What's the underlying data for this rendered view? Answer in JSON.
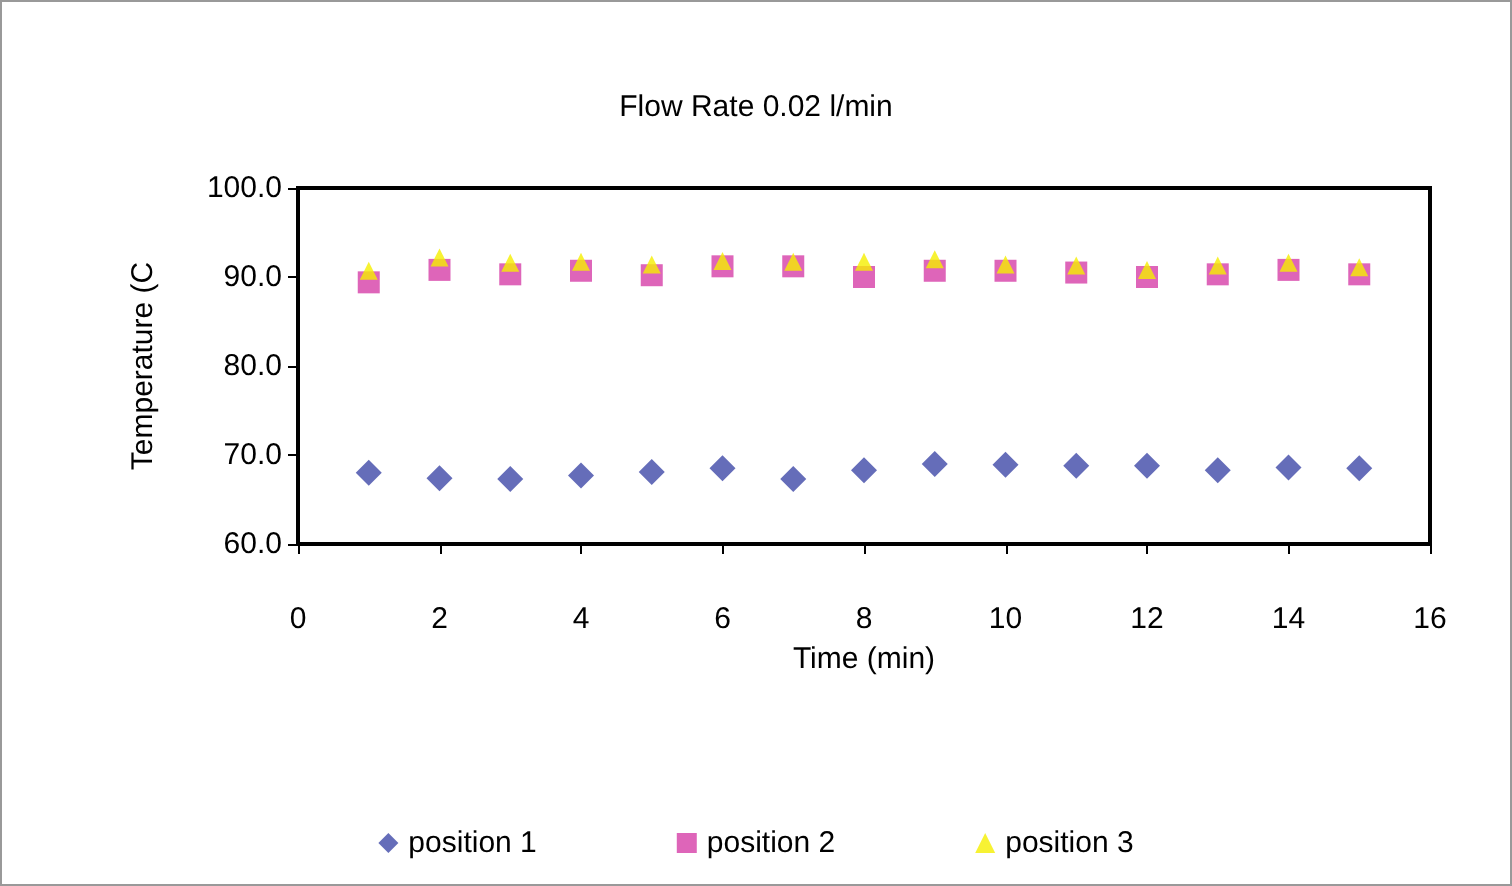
{
  "chart_data": {
    "type": "scatter",
    "title": "Flow Rate 0.02 l/min",
    "xlabel": "Time (min)",
    "ylabel": "Temperature (C",
    "x": [
      1,
      2,
      3,
      4,
      5,
      6,
      7,
      8,
      9,
      10,
      11,
      12,
      13,
      14,
      15
    ],
    "series": [
      {
        "name": "position 1",
        "color": "#3f48a8",
        "marker": "diamond",
        "values": [
          68.0,
          67.4,
          67.3,
          67.7,
          68.1,
          68.5,
          67.3,
          68.3,
          69.0,
          68.9,
          68.8,
          68.8,
          68.3,
          68.6,
          68.5
        ]
      },
      {
        "name": "position 2",
        "color": "#d63fa8",
        "marker": "square",
        "values": [
          89.4,
          90.8,
          90.3,
          90.7,
          90.2,
          91.2,
          91.2,
          90.0,
          90.7,
          90.7,
          90.5,
          90.0,
          90.3,
          90.8,
          90.3
        ]
      },
      {
        "name": "position 3",
        "color": "#f5ef00",
        "marker": "triangle",
        "values": [
          90.7,
          92.2,
          91.6,
          91.7,
          91.4,
          91.8,
          91.7,
          91.7,
          92.0,
          91.4,
          91.3,
          90.8,
          91.3,
          91.6,
          91.1
        ]
      }
    ],
    "xlim": [
      0,
      16
    ],
    "xticks": [
      0,
      2,
      4,
      6,
      8,
      10,
      12,
      14,
      16
    ],
    "ylim": [
      60,
      100
    ],
    "yticks": [
      {
        "value": 60,
        "label": "60.0"
      },
      {
        "value": 70,
        "label": "70.0"
      },
      {
        "value": 80,
        "label": "80.0"
      },
      {
        "value": 90,
        "label": "90.0"
      },
      {
        "value": 100,
        "label": "100.0"
      }
    ],
    "grid": false,
    "legend": "bottom"
  }
}
